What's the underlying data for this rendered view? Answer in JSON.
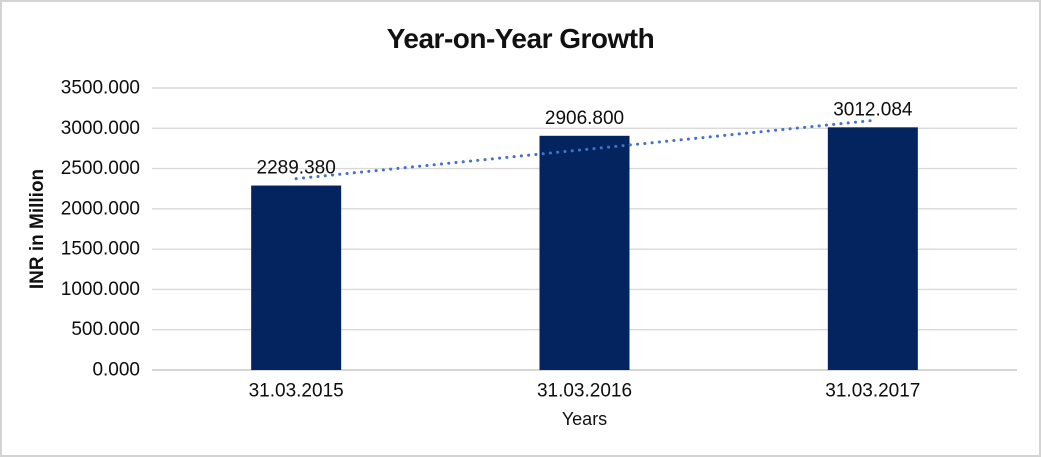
{
  "chart_data": {
    "type": "bar",
    "title": "Year-on-Year Growth",
    "categories": [
      "31.03.2015",
      "31.03.2016",
      "31.03.2017"
    ],
    "values": [
      2289.38,
      2906.8,
      3012.084
    ],
    "data_labels": [
      "2289.380",
      "2906.800",
      "3012.084"
    ],
    "xlabel": "Years",
    "ylabel": "INR in Million",
    "ylim": [
      0,
      3500
    ],
    "ytick_interval": 500,
    "ytick_labels": [
      "0.000",
      "500.000",
      "1000.000",
      "1500.000",
      "2000.000",
      "2500.000",
      "3000.000",
      "3500.000"
    ],
    "grid": true,
    "legend": "none",
    "trendline": {
      "type": "linear",
      "style": "dotted",
      "span": "first-to-last-bar-center"
    },
    "colors": {
      "bar": "#03245e",
      "trendline": "#4472c4",
      "gridline": "#d9d9d9",
      "axis_line": "#d6d6d6",
      "text": "#0d0d0d",
      "frame_border": "#d3d3d3",
      "background": "#ffffff"
    }
  }
}
